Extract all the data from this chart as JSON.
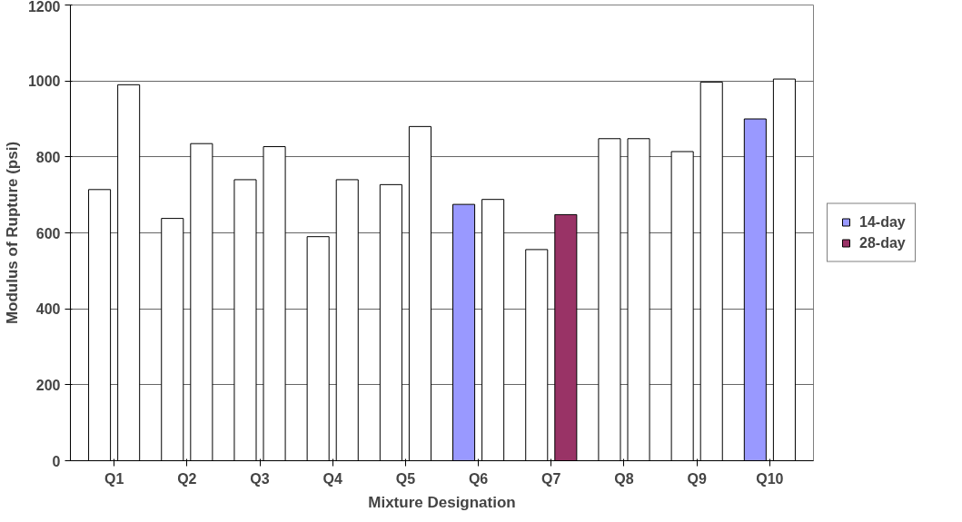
{
  "chart_data": {
    "type": "bar",
    "xlabel": "Mixture Designation",
    "ylabel": "Modulus of Rupture (psi)",
    "categories": [
      "Q1",
      "Q2",
      "Q3",
      "Q4",
      "Q5",
      "Q6",
      "Q7",
      "Q8",
      "Q9",
      "Q10"
    ],
    "series": [
      {
        "name": "14-day",
        "color": "#9999ff",
        "colors": [
          "#ffffff",
          "#ffffff",
          "#ffffff",
          "#ffffff",
          "#ffffff",
          "#9999ff",
          "#ffffff",
          "#ffffff",
          "#ffffff",
          "#9999ff"
        ],
        "values": [
          714,
          638,
          740,
          590,
          727,
          675,
          556,
          848,
          814,
          900
        ]
      },
      {
        "name": "28-day",
        "color": "#993366",
        "colors": [
          "#ffffff",
          "#ffffff",
          "#ffffff",
          "#ffffff",
          "#ffffff",
          "#ffffff",
          "#993366",
          "#ffffff",
          "#ffffff",
          "#ffffff"
        ],
        "values": [
          990,
          835,
          827,
          740,
          880,
          688,
          648,
          848,
          997,
          1005
        ]
      }
    ],
    "ylim": [
      0,
      1200
    ],
    "yticks": [
      0,
      200,
      400,
      600,
      800,
      1000,
      1200
    ],
    "grid": "y",
    "legend": "right"
  }
}
